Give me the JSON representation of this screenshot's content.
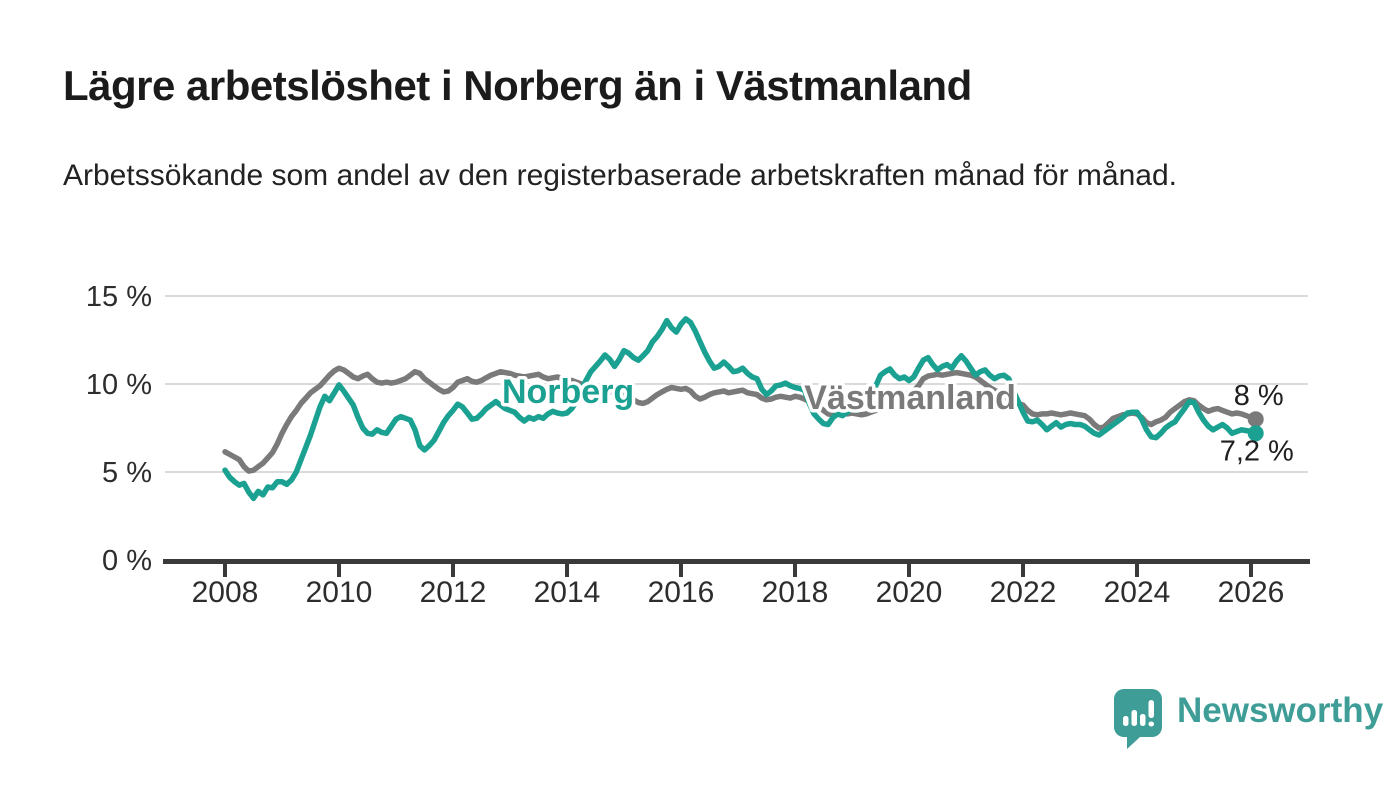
{
  "header": {
    "title": "Lägre arbetslöshet i Norberg än i Västmanland",
    "subtitle": "Arbetssökande som andel av den registerbaserade arbetskraften månad för månad."
  },
  "chart_data": {
    "type": "line",
    "unit": "%",
    "x_start_year": 2008,
    "x_start_month": 1,
    "frequency": "monthly",
    "xlim": [
      2007.0,
      2027.0
    ],
    "ylim": [
      0,
      15.5
    ],
    "grid": "horizontal",
    "yticks": [
      0,
      5,
      10,
      15
    ],
    "ytick_labels": [
      "0 %",
      "5 %",
      "10 %",
      "15 %"
    ],
    "xticks": [
      2008,
      2010,
      2012,
      2014,
      2016,
      2018,
      2020,
      2022,
      2024,
      2026
    ],
    "xtick_labels": [
      "2008",
      "2010",
      "2012",
      "2014",
      "2016",
      "2018",
      "2020",
      "2022",
      "2024",
      "2026"
    ],
    "colors": {
      "grid": "#DADADA",
      "axis": "#3A3A3A",
      "tick_text": "#2D2D2D",
      "end_label_text": "#1F1F1F"
    },
    "series": [
      {
        "name": "Norberg",
        "color": "#1AA191",
        "end_label": "7,2 %",
        "end_value": 7.2,
        "inline_label": {
          "t": 2014.02,
          "v": 9.6
        },
        "values": [
          5.1,
          4.7,
          4.45,
          4.25,
          4.35,
          3.85,
          3.5,
          3.9,
          3.7,
          4.15,
          4.1,
          4.45,
          4.45,
          4.3,
          4.55,
          5.0,
          5.7,
          6.4,
          7.1,
          7.9,
          8.7,
          9.3,
          9.05,
          9.5,
          9.95,
          9.6,
          9.2,
          8.8,
          8.1,
          7.5,
          7.2,
          7.15,
          7.4,
          7.25,
          7.2,
          7.6,
          8.0,
          8.15,
          8.05,
          7.95,
          7.4,
          6.5,
          6.25,
          6.5,
          6.8,
          7.3,
          7.8,
          8.2,
          8.5,
          8.85,
          8.7,
          8.35,
          8.0,
          8.05,
          8.3,
          8.6,
          8.8,
          9.0,
          8.8,
          8.6,
          8.5,
          8.4,
          8.1,
          7.9,
          8.1,
          8.0,
          8.15,
          8.05,
          8.3,
          8.45,
          8.35,
          8.3,
          8.35,
          8.6,
          9.0,
          9.65,
          10.2,
          10.7,
          11.0,
          11.3,
          11.65,
          11.4,
          11.0,
          11.4,
          11.9,
          11.75,
          11.5,
          11.35,
          11.6,
          11.9,
          12.4,
          12.7,
          13.1,
          13.6,
          13.2,
          12.95,
          13.4,
          13.7,
          13.5,
          13.0,
          12.4,
          11.8,
          11.3,
          10.9,
          11.0,
          11.25,
          11.0,
          10.7,
          10.75,
          10.9,
          10.6,
          10.4,
          10.3,
          9.7,
          9.4,
          9.6,
          9.9,
          9.95,
          10.05,
          9.9,
          9.8,
          9.75,
          9.65,
          8.9,
          8.3,
          8.0,
          7.75,
          7.7,
          8.1,
          8.3,
          8.2,
          8.4,
          8.6,
          8.5,
          8.7,
          9.0,
          9.4,
          9.9,
          10.5,
          10.7,
          10.85,
          10.5,
          10.3,
          10.4,
          10.2,
          10.4,
          10.9,
          11.35,
          11.5,
          11.1,
          10.8,
          11.0,
          11.1,
          10.9,
          11.3,
          11.6,
          11.3,
          10.9,
          10.5,
          10.7,
          10.8,
          10.5,
          10.3,
          10.45,
          10.5,
          10.3,
          9.6,
          9.0,
          8.4,
          7.9,
          7.85,
          7.95,
          7.7,
          7.4,
          7.6,
          7.8,
          7.55,
          7.7,
          7.75,
          7.7,
          7.7,
          7.6,
          7.4,
          7.2,
          7.1,
          7.3,
          7.5,
          7.7,
          7.9,
          8.1,
          8.35,
          8.4,
          8.4,
          8.0,
          7.4,
          7.0,
          6.95,
          7.2,
          7.5,
          7.7,
          7.85,
          8.25,
          8.6,
          9.0,
          8.95,
          8.4,
          7.95,
          7.6,
          7.4,
          7.55,
          7.7,
          7.5,
          7.2,
          7.3,
          7.4,
          7.35,
          7.3,
          7.2
        ]
      },
      {
        "name": "Västmanland",
        "color": "#7A7A7A",
        "end_label": "8 %",
        "end_value": 8.0,
        "inline_label": {
          "t": 2020.02,
          "v": 9.26
        },
        "values": [
          6.15,
          6.0,
          5.85,
          5.7,
          5.3,
          5.05,
          5.1,
          5.3,
          5.5,
          5.8,
          6.1,
          6.6,
          7.2,
          7.7,
          8.15,
          8.5,
          8.9,
          9.2,
          9.5,
          9.7,
          9.9,
          10.2,
          10.5,
          10.75,
          10.9,
          10.8,
          10.6,
          10.4,
          10.3,
          10.45,
          10.55,
          10.3,
          10.1,
          10.05,
          10.1,
          10.05,
          10.1,
          10.2,
          10.3,
          10.5,
          10.7,
          10.6,
          10.3,
          10.1,
          9.9,
          9.7,
          9.55,
          9.6,
          9.8,
          10.1,
          10.2,
          10.3,
          10.15,
          10.1,
          10.2,
          10.35,
          10.5,
          10.6,
          10.7,
          10.65,
          10.6,
          10.5,
          10.45,
          10.4,
          10.45,
          10.5,
          10.55,
          10.4,
          10.3,
          10.35,
          10.4,
          10.3,
          10.25,
          10.2,
          10.1,
          10.0,
          9.9,
          9.8,
          9.75,
          9.7,
          9.6,
          9.55,
          9.5,
          9.4,
          9.35,
          9.3,
          9.1,
          8.95,
          8.9,
          9.0,
          9.2,
          9.4,
          9.55,
          9.7,
          9.8,
          9.75,
          9.7,
          9.75,
          9.6,
          9.3,
          9.15,
          9.25,
          9.4,
          9.5,
          9.55,
          9.6,
          9.5,
          9.55,
          9.6,
          9.65,
          9.5,
          9.45,
          9.4,
          9.2,
          9.1,
          9.15,
          9.25,
          9.3,
          9.25,
          9.2,
          9.3,
          9.25,
          9.15,
          9.0,
          8.9,
          8.7,
          8.5,
          8.3,
          8.25,
          8.3,
          8.35,
          8.3,
          8.35,
          8.3,
          8.25,
          8.3,
          8.4,
          8.5,
          8.7,
          8.9,
          9.0,
          9.1,
          9.25,
          9.4,
          9.5,
          9.6,
          9.9,
          10.3,
          10.45,
          10.5,
          10.55,
          10.5,
          10.55,
          10.6,
          10.65,
          10.6,
          10.55,
          10.5,
          10.4,
          10.2,
          10.0,
          9.8,
          9.65,
          9.5,
          9.3,
          9.1,
          9.0,
          8.9,
          8.8,
          8.5,
          8.3,
          8.25,
          8.3,
          8.3,
          8.35,
          8.3,
          8.25,
          8.3,
          8.35,
          8.3,
          8.25,
          8.2,
          8.0,
          7.7,
          7.5,
          7.55,
          7.8,
          8.05,
          8.15,
          8.25,
          8.3,
          8.35,
          8.3,
          8.1,
          7.8,
          7.7,
          7.85,
          7.95,
          8.1,
          8.4,
          8.6,
          8.8,
          9.0,
          9.1,
          9.05,
          8.8,
          8.6,
          8.45,
          8.55,
          8.6,
          8.5,
          8.4,
          8.3,
          8.35,
          8.3,
          8.2,
          8.1,
          8.0
        ]
      }
    ]
  },
  "branding": {
    "logo_text": "Newsworthy",
    "logo_color": "#3E9D96"
  }
}
